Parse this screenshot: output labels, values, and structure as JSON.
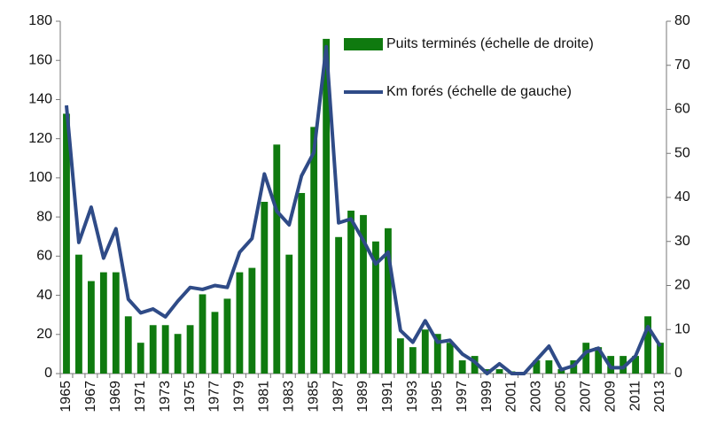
{
  "chart_data": {
    "type": "bar",
    "categories": [
      "1965",
      null,
      "1967",
      null,
      "1969",
      null,
      "1971",
      null,
      "1973",
      null,
      "1975",
      null,
      "1977",
      null,
      "1979",
      null,
      "1981",
      null,
      "1983",
      null,
      "1985",
      null,
      "1987",
      null,
      "1989",
      null,
      "1991",
      null,
      "1993",
      null,
      "1995",
      null,
      "1997",
      null,
      "1999",
      null,
      "2001",
      null,
      "2003",
      null,
      "2005",
      null,
      "2007",
      null,
      "2009",
      null,
      "2011",
      null,
      "2013"
    ],
    "series": [
      {
        "name": "Puits terminés (échelle de droite)",
        "type": "bar",
        "axis": "y2",
        "color": "#0f7a0f",
        "values": [
          59,
          27,
          21,
          23,
          23,
          13,
          7,
          11,
          11,
          9,
          11,
          18,
          14,
          17,
          23,
          24,
          39,
          52,
          27,
          41,
          56,
          76,
          31,
          37,
          36,
          30,
          33,
          8,
          6,
          10,
          9,
          7,
          3,
          4,
          1,
          1,
          0.5,
          0,
          3,
          3,
          1,
          3,
          7,
          6,
          4,
          4,
          4,
          13,
          7
        ]
      },
      {
        "name": "Km forés (échelle de gauche)",
        "type": "line",
        "axis": "y",
        "color": "#2f4b87",
        "values": [
          137,
          67,
          85,
          59,
          74,
          38,
          31,
          33,
          29,
          37,
          44,
          43,
          45,
          44,
          62,
          69,
          102,
          83,
          76,
          101,
          113,
          167,
          77,
          79,
          68,
          56,
          62,
          22,
          16,
          27,
          16,
          17,
          10,
          6,
          0,
          5,
          0,
          0,
          7,
          14,
          2,
          4,
          11,
          13,
          3,
          3,
          9,
          24,
          14
        ]
      }
    ],
    "ylim": [
      0,
      180
    ],
    "yticks": [
      0,
      20,
      40,
      60,
      80,
      100,
      120,
      140,
      160,
      180
    ],
    "y2lim": [
      0,
      80
    ],
    "y2ticks": [
      0,
      10,
      20,
      30,
      40,
      50,
      60,
      70,
      80
    ],
    "grid": false,
    "legend": "upper right"
  }
}
